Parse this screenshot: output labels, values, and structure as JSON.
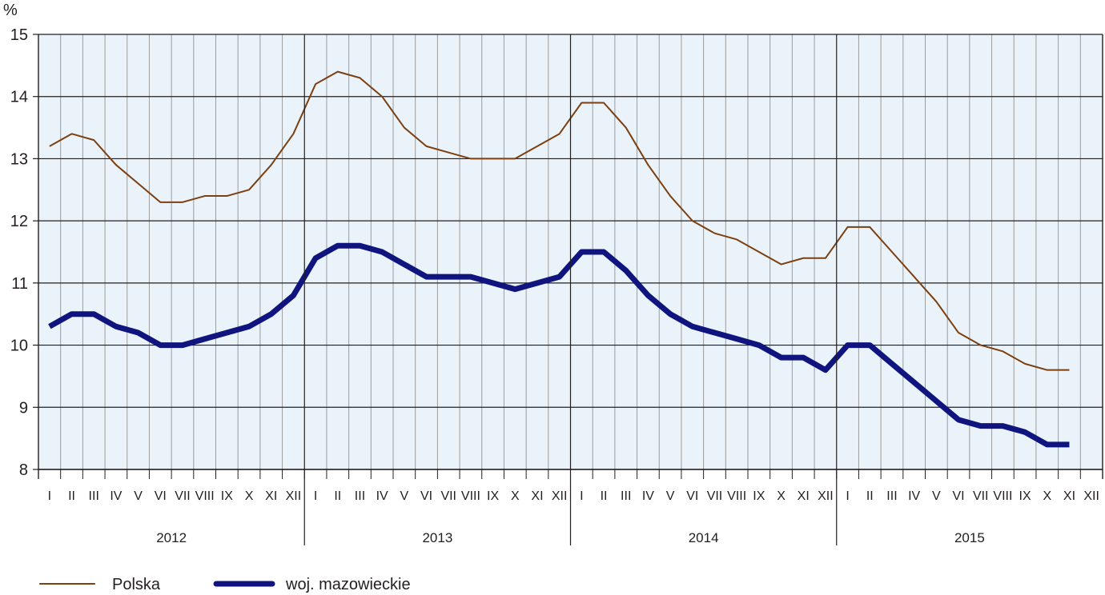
{
  "chart_data": {
    "type": "line",
    "ylabel": "%",
    "ylim": [
      8,
      15
    ],
    "yticks": [
      "8",
      "9",
      "10",
      "11",
      "12",
      "13",
      "14",
      "15"
    ],
    "month_labels": [
      "I",
      "II",
      "III",
      "IV",
      "V",
      "VI",
      "VII",
      "VIII",
      "IX",
      "X",
      "XI",
      "XII"
    ],
    "years": [
      "2012",
      "2013",
      "2014",
      "2015"
    ],
    "grid": true,
    "legend_position": "bottom-left",
    "series": [
      {
        "name": "Polska",
        "color": "#7b3f12",
        "style": "thin",
        "values": [
          13.2,
          13.4,
          13.3,
          12.9,
          12.6,
          12.3,
          12.3,
          12.4,
          12.4,
          12.5,
          12.9,
          13.4,
          14.2,
          14.4,
          14.3,
          14.0,
          13.5,
          13.2,
          13.1,
          13.0,
          13.0,
          13.0,
          13.2,
          13.4,
          13.9,
          13.9,
          13.5,
          12.9,
          12.4,
          12.0,
          11.8,
          11.7,
          11.5,
          11.3,
          11.4,
          11.4,
          11.9,
          11.9,
          11.5,
          11.1,
          10.7,
          10.2,
          10.0,
          9.9,
          9.7,
          9.6,
          9.6
        ]
      },
      {
        "name": "woj. mazowieckie",
        "color": "#10147e",
        "style": "thick",
        "values": [
          10.3,
          10.5,
          10.5,
          10.3,
          10.2,
          10.0,
          10.0,
          10.1,
          10.2,
          10.3,
          10.5,
          10.8,
          11.4,
          11.6,
          11.6,
          11.5,
          11.3,
          11.1,
          11.1,
          11.1,
          11.0,
          10.9,
          11.0,
          11.1,
          11.5,
          11.5,
          11.2,
          10.8,
          10.5,
          10.3,
          10.2,
          10.1,
          10.0,
          9.8,
          9.8,
          9.6,
          10.0,
          10.0,
          9.7,
          9.4,
          9.1,
          8.8,
          8.7,
          8.7,
          8.6,
          8.4,
          8.4
        ]
      }
    ]
  },
  "colors": {
    "plot_background": "#e9f3f9",
    "grid_minor": "#9c9c9c",
    "grid_major": "#231f20"
  }
}
